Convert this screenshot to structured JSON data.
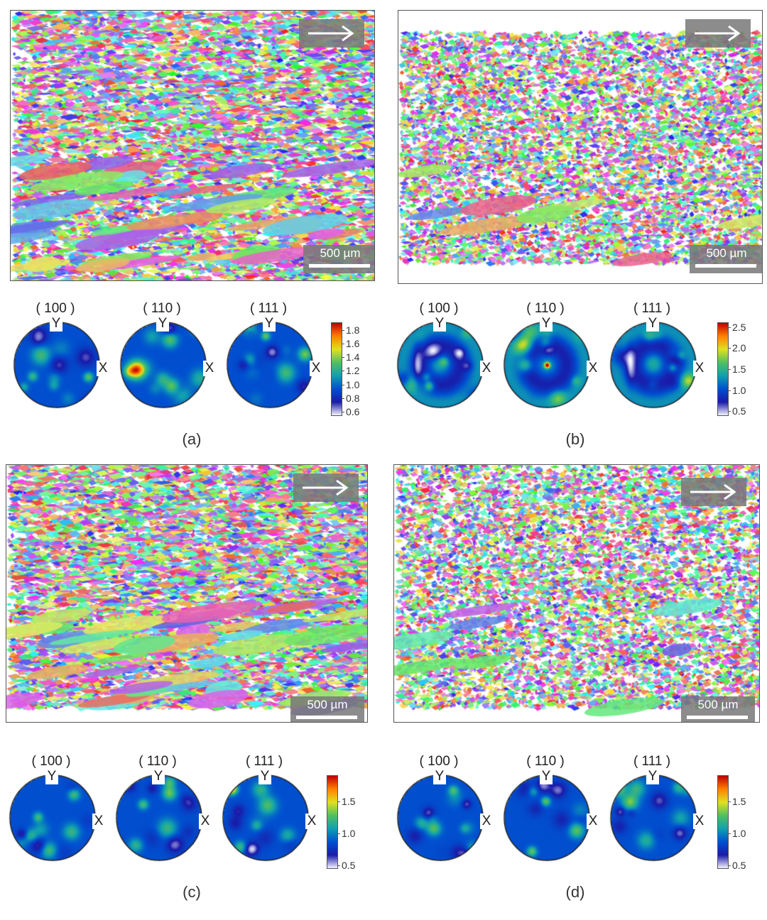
{
  "panels": [
    {
      "caption": "(a)",
      "scale_label": "500 µm",
      "pole_figures": [
        {
          "label": "( 100 )",
          "y_axis": "Y",
          "x_axis": "X"
        },
        {
          "label": "( 110 )",
          "y_axis": "Y",
          "x_axis": "X"
        },
        {
          "label": "( 111 )",
          "y_axis": "Y",
          "x_axis": "X"
        }
      ],
      "colorbar": {
        "ticks": [
          "1.8",
          "1.6",
          "1.4",
          "1.2",
          "1.0",
          "0.8",
          "0.6"
        ],
        "min": 0.55,
        "max": 1.9
      }
    },
    {
      "caption": "(b)",
      "scale_label": "500 µm",
      "pole_figures": [
        {
          "label": "( 100 )",
          "y_axis": "Y",
          "x_axis": "X"
        },
        {
          "label": "( 110 )",
          "y_axis": "Y",
          "x_axis": "X"
        },
        {
          "label": "( 111 )",
          "y_axis": "Y",
          "x_axis": "X"
        }
      ],
      "colorbar": {
        "ticks": [
          "2.5",
          "2.0",
          "1.5",
          "1.0",
          "0.5"
        ],
        "min": 0.4,
        "max": 2.6
      }
    },
    {
      "caption": "(c)",
      "scale_label": "500 µm",
      "pole_figures": [
        {
          "label": "( 100 )",
          "y_axis": "Y",
          "x_axis": "X"
        },
        {
          "label": "( 110 )",
          "y_axis": "Y",
          "x_axis": "X"
        },
        {
          "label": "( 111 )",
          "y_axis": "Y",
          "x_axis": "X"
        }
      ],
      "colorbar": {
        "ticks": [
          "1.5",
          "1.0",
          "0.5"
        ],
        "min": 0.45,
        "max": 1.9
      }
    },
    {
      "caption": "(d)",
      "scale_label": "500 µm",
      "pole_figures": [
        {
          "label": "( 100 )",
          "y_axis": "Y",
          "x_axis": "X"
        },
        {
          "label": "( 110 )",
          "y_axis": "Y",
          "x_axis": "X"
        },
        {
          "label": "( 111 )",
          "y_axis": "Y",
          "x_axis": "X"
        }
      ],
      "colorbar": {
        "ticks": [
          "1.5",
          "1.0",
          "0.5"
        ],
        "min": 0.45,
        "max": 1.9
      }
    }
  ],
  "colors": {
    "colormap": [
      "#f4f4ff",
      "#1a1aa8",
      "#0050d0",
      "#10a0b0",
      "#50c060",
      "#e0e020",
      "#ff8000",
      "#c00000"
    ]
  }
}
